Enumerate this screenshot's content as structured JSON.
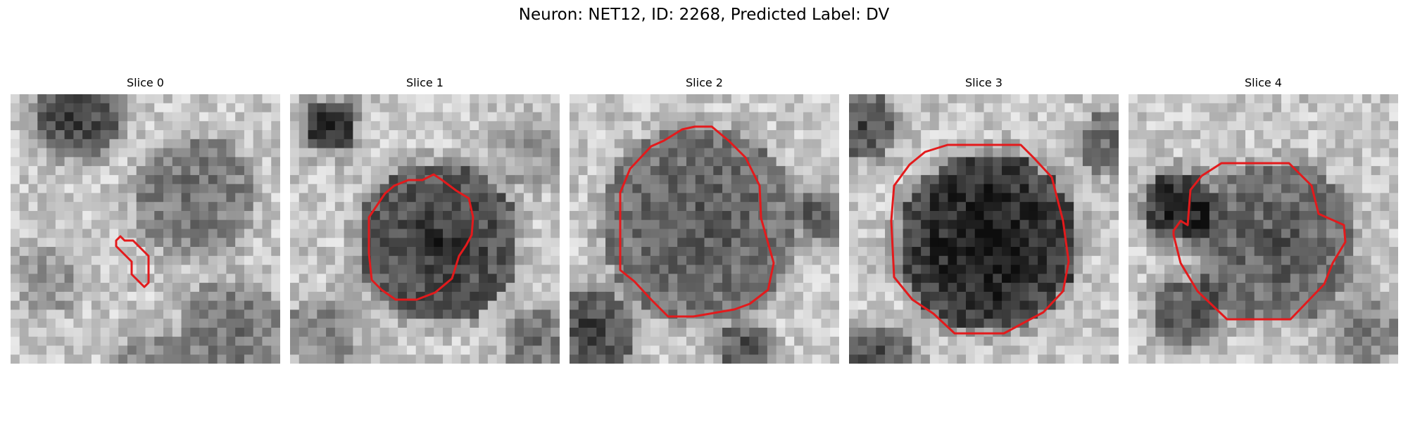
{
  "figure": {
    "title": "Neuron: NET12, ID: 2268, Predicted Label: DV",
    "contour_color": "#e31a1c",
    "colormap": "gray"
  },
  "panels": [
    {
      "title": "Slice 0"
    },
    {
      "title": "Slice 1"
    },
    {
      "title": "Slice 2"
    },
    {
      "title": "Slice 3"
    },
    {
      "title": "Slice 4"
    }
  ]
}
